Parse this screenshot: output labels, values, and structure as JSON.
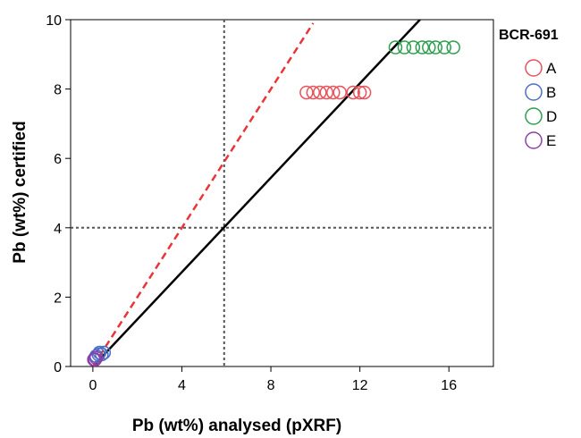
{
  "chart_data": {
    "type": "scatter",
    "title": "",
    "xlabel": "Pb (wt%) analysed (pXRF)",
    "ylabel": "Pb (wt%) certified",
    "xlim": [
      -1,
      18
    ],
    "ylim": [
      0,
      10
    ],
    "x_ticks": [
      0,
      4,
      8,
      12,
      16
    ],
    "y_ticks": [
      0,
      2,
      4,
      6,
      8,
      10
    ],
    "legend": {
      "title": "BCR-691",
      "placement": "top-right outside"
    },
    "grid": false,
    "series": [
      {
        "name": "A",
        "color": "#e8525b",
        "points": [
          [
            9.6,
            7.9
          ],
          [
            9.9,
            7.9
          ],
          [
            10.2,
            7.9
          ],
          [
            10.5,
            7.9
          ],
          [
            10.8,
            7.9
          ],
          [
            11.1,
            7.9
          ],
          [
            11.7,
            7.9
          ],
          [
            12.0,
            7.9
          ],
          [
            12.2,
            7.9
          ]
        ]
      },
      {
        "name": "B",
        "color": "#4b6fc4",
        "points": [
          [
            0.15,
            0.3
          ],
          [
            0.25,
            0.35
          ],
          [
            0.4,
            0.35
          ],
          [
            0.5,
            0.4
          ],
          [
            0.3,
            0.4
          ]
        ]
      },
      {
        "name": "D",
        "color": "#2e9e4f",
        "points": [
          [
            13.6,
            9.2
          ],
          [
            14.0,
            9.2
          ],
          [
            14.4,
            9.2
          ],
          [
            14.8,
            9.2
          ],
          [
            15.1,
            9.2
          ],
          [
            15.4,
            9.2
          ],
          [
            15.8,
            9.2
          ],
          [
            16.2,
            9.2
          ]
        ]
      },
      {
        "name": "E",
        "color": "#8b3fa8",
        "points": [
          [
            0.05,
            0.2
          ],
          [
            0.1,
            0.2
          ],
          [
            0.15,
            0.25
          ]
        ]
      }
    ],
    "lines": [
      {
        "kind": "fit",
        "style": "solid",
        "color": "#000000",
        "from": [
          0,
          0
        ],
        "to": [
          14.7,
          10
        ]
      },
      {
        "kind": "one-to-one",
        "style": "dashed",
        "color": "#e8353b",
        "from": [
          0,
          0
        ],
        "to": [
          9.9,
          9.9
        ]
      }
    ],
    "reference_lines": [
      {
        "axis": "x",
        "value": 5.9,
        "style": "dotted",
        "color": "#555555"
      },
      {
        "axis": "y",
        "value": 4,
        "style": "dotted",
        "color": "#555555"
      }
    ]
  }
}
